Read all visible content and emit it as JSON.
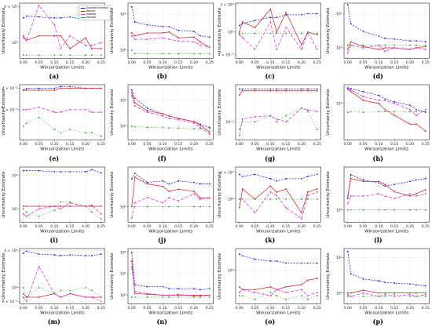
{
  "chart_data": [
    {
      "label": "(a)",
      "type": "line",
      "xlabel": "Winsorization Limits",
      "ylabel": "Uncertainty Estimate",
      "yticks": [
        {
          "v": 1,
          "t": "10⁰"
        },
        {
          "v": 4,
          "t": "4 × 10⁰"
        }
      ],
      "ylim": [
        0.55,
        4.6
      ],
      "legend": [
        "Constant Position",
        "Wiener",
        "Hawkes",
        "Hansen"
      ],
      "series": [
        {
          "values": [
            2.6,
            2.8,
            2.7,
            2.6,
            2.6,
            2.7,
            2.4,
            2.7,
            2.8
          ]
        },
        {
          "values": [
            1.3,
            1.1,
            1.3,
            1.3,
            1.3,
            0.8,
            1.2,
            0.8,
            0.8
          ]
        },
        {
          "values": [
            1.2,
            1.1,
            4.2,
            2.0,
            0.8,
            1.3,
            0.9,
            0.9,
            1.0
          ]
        },
        {
          "values": [
            0.62,
            0.62,
            0.62,
            0.62,
            0.62,
            0.62,
            0.62,
            0.62,
            0.62
          ]
        }
      ]
    },
    {
      "label": "(b)",
      "type": "line",
      "xlabel": "Winsorization Limits",
      "ylabel": "Uncertainty Estimate",
      "yticks": [
        {
          "v": 1,
          "t": "10⁰"
        },
        {
          "v": 10,
          "t": "10¹"
        }
      ],
      "ylim": [
        0.6,
        20
      ],
      "series": [
        {
          "values": [
            16,
            6,
            5,
            4.5,
            4.5,
            3.5,
            3.3,
            2.5,
            2.3
          ]
        },
        {
          "values": [
            3,
            2.5,
            3,
            3,
            3.2,
            2.2,
            2.3,
            1.7,
            1.2
          ]
        },
        {
          "values": [
            2.5,
            2,
            2,
            2.2,
            2,
            1.8,
            1.7,
            1.4,
            1.2
          ]
        },
        {
          "values": [
            1,
            0.8,
            0.8,
            0.8,
            0.8,
            0.8,
            0.8,
            0.8,
            0.8
          ]
        }
      ]
    },
    {
      "label": "(c)",
      "type": "line",
      "xlabel": "Winsorization Limits",
      "ylabel": "Uncertainty Estimate",
      "yticks": [
        {
          "v": 0.4,
          "t": "4 × 10⁻¹"
        },
        {
          "v": 1,
          "t": "10⁰"
        },
        {
          "v": 3,
          "t": "3 × 10⁰"
        }
      ],
      "ylim": [
        0.35,
        3.2
      ],
      "series": [
        {
          "values": [
            1.3,
            1.4,
            1.6,
            1.8,
            1.8,
            2.0,
            2.0,
            2.1,
            2.1
          ]
        },
        {
          "values": [
            1.0,
            1.5,
            1.2,
            2.5,
            1.0,
            2.2,
            0.6,
            1.0,
            0.9
          ]
        },
        {
          "values": [
            0.9,
            0.8,
            0.5,
            1.5,
            0.5,
            1.2,
            0.5,
            1.0,
            0.5
          ]
        },
        {
          "values": [
            0.95,
            0.95,
            0.95,
            0.95,
            0.95,
            0.95,
            0.95,
            0.95,
            0.95
          ]
        }
      ]
    },
    {
      "label": "(d)",
      "type": "line",
      "xlabel": "Winsorization Limits",
      "ylabel": "Uncertainty Estimate",
      "yticks": [
        {
          "v": 1,
          "t": "10⁰"
        },
        {
          "v": 10,
          "t": "10¹"
        }
      ],
      "ylim": [
        0.5,
        20
      ],
      "series": [
        {
          "values": [
            18,
            5,
            3,
            2.2,
            1.9,
            1.8,
            1.6,
            1.6,
            1.5
          ]
        },
        {
          "values": [
            0.9,
            1.5,
            1.1,
            0.9,
            1.0,
            1.0,
            0.9,
            1.0,
            1.1
          ]
        },
        {
          "values": [
            0.7,
            1.2,
            1.0,
            1.2,
            0.8,
            1.0,
            0.9,
            1.0,
            0.9
          ]
        },
        {
          "values": [
            1.2,
            1.2,
            1.2,
            1.2,
            1.2,
            1.2,
            1.2,
            1.2,
            1.2
          ]
        }
      ]
    },
    {
      "label": "(e)",
      "type": "line",
      "xlabel": "Winsorization Limits",
      "ylabel": "Uncertainty Estimate",
      "yticks": [
        {
          "v": 0.4,
          "t": "4 × 10⁻¹"
        },
        {
          "v": 0.3,
          "t": "3 × 10⁻¹"
        }
      ],
      "ylim": [
        0.2,
        0.42
      ],
      "series": [
        {
          "values": [
            0.39,
            0.4,
            0.4,
            0.4,
            0.41,
            0.41,
            0.4,
            0.4,
            0.4
          ]
        },
        {
          "values": [
            0.39,
            0.39,
            0.39,
            0.39,
            0.4,
            0.4,
            0.4,
            0.4,
            0.4
          ]
        },
        {
          "values": [
            0.3,
            0.3,
            0.31,
            0.29,
            0.29,
            0.3,
            0.3,
            0.29,
            0.29
          ]
        },
        {
          "values": [
            0.24,
            0.25,
            0.27,
            0.23,
            0.22,
            0.23,
            0.22,
            0.22,
            0.21
          ]
        }
      ]
    },
    {
      "label": "(f)",
      "type": "line",
      "xlabel": "Winsorization Limits",
      "ylabel": "Uncertainty Estimate",
      "yticks": [
        {
          "v": 1,
          "t": "10⁰"
        },
        {
          "v": 10,
          "t": "10¹"
        }
      ],
      "ylim": [
        0.3,
        40
      ],
      "series": [
        {
          "values": [
            25,
            12,
            5,
            3,
            2.5,
            2,
            1.5,
            1.2,
            0.9
          ]
        },
        {
          "values": [
            20,
            8,
            4,
            3,
            2.5,
            2,
            1.5,
            1.1,
            0.6
          ]
        },
        {
          "values": [
            15,
            6,
            3.5,
            2.5,
            2,
            1.8,
            1.3,
            0.9,
            0.5
          ]
        },
        {
          "values": [
            1,
            0.95,
            0.9,
            0.9,
            0.85,
            0.85,
            0.8,
            0.8,
            0.8
          ]
        }
      ]
    },
    {
      "label": "(g)",
      "type": "line",
      "xlabel": "Winsorization Limits",
      "ylabel": "Uncertainty Estimate",
      "yticks": [
        {
          "v": 0.1,
          "t": "10⁻¹"
        }
      ],
      "ylim": [
        0.03,
        1.2
      ],
      "series": [
        {
          "values": [
            0.9,
            0.9,
            0.9,
            0.9,
            0.9,
            0.9,
            0.9,
            0.9,
            0.9
          ]
        },
        {
          "values": [
            0.6,
            0.8,
            0.8,
            0.8,
            0.8,
            0.8,
            0.8,
            0.8,
            0.8
          ]
        },
        {
          "values": [
            0.04,
            0.12,
            0.14,
            0.15,
            0.12,
            0.1,
            0.25,
            0.22,
            0.2
          ]
        },
        {
          "values": [
            0.06,
            0.1,
            0.1,
            0.15,
            0.1,
            0.15,
            0.25,
            0.2,
            0.06
          ]
        }
      ]
    },
    {
      "label": "(h)",
      "type": "line",
      "xlabel": "Winsorization Limits",
      "ylabel": "Uncertainty Estimate",
      "yticks": [
        {
          "v": 1,
          "t": "10⁰"
        }
      ],
      "ylim": [
        0.12,
        3
      ],
      "series": [
        {
          "values": [
            2.5,
            2.4,
            2.0,
            1.6,
            1.3,
            1.1,
            0.9,
            0.7,
            0.6
          ]
        },
        {
          "values": [
            2.3,
            2.0,
            1.2,
            1.0,
            0.7,
            0.5,
            0.3,
            0.3,
            0.2
          ]
        },
        {
          "values": [
            2.4,
            2.2,
            1.5,
            1.2,
            1.2,
            1.0,
            0.7,
            0.5,
            0.7
          ]
        },
        {
          "values": [
            0.6,
            0.62,
            0.6,
            0.62,
            0.62,
            0.62,
            0.62,
            0.62,
            0.62
          ]
        }
      ]
    },
    {
      "label": "(i)",
      "type": "line",
      "xlabel": "Winsorization Limits",
      "ylabel": "Uncertainty Estimate",
      "yticks": [
        {
          "v": 1,
          "t": "10⁰"
        },
        {
          "v": 10,
          "t": "10¹"
        }
      ],
      "ylim": [
        0.4,
        18
      ],
      "series": [
        {
          "values": [
            14,
            14,
            14,
            13,
            13,
            13,
            13,
            15,
            12
          ]
        },
        {
          "values": [
            1.2,
            1.2,
            1.2,
            1.2,
            1.2,
            1.2,
            1.2,
            1.2,
            1.2
          ]
        },
        {
          "values": [
            0.7,
            0.6,
            1.0,
            1.2,
            1.0,
            1.5,
            1.2,
            1.3,
            0.7
          ]
        },
        {
          "values": [
            1.0,
            0.8,
            0.6,
            0.9,
            1.6,
            1.6,
            1.2,
            0.8,
            0.5
          ]
        }
      ]
    },
    {
      "label": "(j)",
      "type": "line",
      "xlabel": "Winsorization Limits",
      "ylabel": "Uncertainty Estimate",
      "yticks": [
        {
          "v": 1,
          "t": "10⁰"
        }
      ],
      "ylim": [
        0.5,
        6
      ],
      "series": [
        {
          "values": [
            3.5,
            4.5,
            3.0,
            3.2,
            2.8,
            3.2,
            3.0,
            2.8,
            2.8
          ]
        },
        {
          "values": [
            1.0,
            3.8,
            2.8,
            2.5,
            2.0,
            2.2,
            2.0,
            1.5,
            1.5
          ]
        },
        {
          "values": [
            0.6,
            1.2,
            1.5,
            1.2,
            1.5,
            1.3,
            1.8,
            1.4,
            1.5
          ]
        },
        {
          "values": [
            1.0,
            1.0,
            1.0,
            1.0,
            1.0,
            1.0,
            1.0,
            1.0,
            1.0
          ]
        }
      ]
    },
    {
      "label": "(k)",
      "type": "line",
      "xlabel": "Winsorization Limits",
      "ylabel": "Uncertainty Estimate",
      "yticks": [
        {
          "v": 1,
          "t": "10⁰"
        },
        {
          "v": 2,
          "t": "2 × 10⁰"
        }
      ],
      "ylim": [
        0.55,
        2.3
      ],
      "series": [
        {
          "values": [
            1.9,
            1.8,
            1.9,
            1.7,
            1.6,
            1.7,
            1.7,
            1.8,
            1.9
          ]
        },
        {
          "values": [
            0.8,
            1.3,
            1.0,
            1.4,
            1.2,
            1.3,
            0.7,
            1.2,
            1.3
          ]
        },
        {
          "values": [
            1.0,
            1.0,
            0.7,
            1.2,
            1.1,
            0.8,
            0.6,
            1.1,
            1.2
          ]
        },
        {
          "values": [
            1.0,
            1.0,
            1.0,
            1.0,
            1.0,
            1.0,
            1.0,
            1.0,
            1.0
          ]
        }
      ]
    },
    {
      "label": "(l)",
      "type": "line",
      "xlabel": "Winsorization Limits",
      "ylabel": "Uncertainty Estimate",
      "yticks": [
        {
          "v": 1,
          "t": "10⁰"
        }
      ],
      "ylim": [
        0.7,
        3.5
      ],
      "series": [
        {
          "values": [
            1.4,
            2.8,
            2.4,
            2.2,
            2.0,
            2.1,
            2.3,
            2.4,
            2.5
          ]
        },
        {
          "values": [
            1.5,
            2.5,
            2.3,
            2.3,
            2.1,
            1.7,
            1.5,
            1.6,
            1.8
          ]
        },
        {
          "values": [
            1.2,
            1.5,
            1.5,
            1.6,
            1.5,
            1.4,
            1.6,
            1.5,
            1.6
          ]
        },
        {
          "values": [
            1.0,
            1.0,
            1.0,
            1.0,
            1.0,
            1.0,
            1.0,
            1.0,
            1.0
          ]
        }
      ]
    },
    {
      "label": "(m)",
      "type": "line",
      "xlabel": "Winsorization Limits",
      "ylabel": "Uncertainty Estimate",
      "yticks": [
        {
          "v": 0.6,
          "t": "6 × 10⁻¹"
        },
        {
          "v": 1,
          "t": "10⁰"
        },
        {
          "v": 4,
          "t": "4 × 10⁰"
        }
      ],
      "ylim": [
        0.55,
        4.3
      ],
      "series": [
        {
          "values": [
            3.6,
            3.9,
            3.5,
            3.4,
            3.3,
            3.4,
            3.3,
            3.3,
            3.5
          ]
        },
        {
          "values": [
            0.8,
            0.7,
            0.7,
            0.8,
            0.7,
            0.8,
            0.7,
            0.7,
            0.7
          ]
        },
        {
          "values": [
            0.7,
            0.6,
            2.2,
            0.8,
            0.7,
            0.8,
            0.7,
            0.7,
            0.6
          ]
        },
        {
          "values": [
            1.0,
            0.7,
            1.0,
            0.8,
            0.9,
            0.9,
            1.0,
            0.9,
            0.7
          ]
        }
      ]
    },
    {
      "label": "(n)",
      "type": "line",
      "xlabel": "Winsorization Limits",
      "ylabel": "Uncertainty Estimate",
      "yticks": [
        {
          "v": 1,
          "t": "10⁰"
        },
        {
          "v": 10,
          "t": "10¹"
        },
        {
          "v": 100,
          "t": "10²"
        }
      ],
      "ylim": [
        0.4,
        150
      ],
      "series": [
        {
          "values": [
            100,
            3,
            2.5,
            2.5,
            2,
            2,
            2,
            1.8,
            2
          ]
        },
        {
          "values": [
            40,
            1.2,
            1.1,
            1,
            1,
            1,
            1,
            1,
            1
          ]
        },
        {
          "values": [
            20,
            1.5,
            1.2,
            1,
            1,
            1.1,
            0.9,
            0.9,
            1
          ]
        },
        {
          "values": [
            0.8,
            0.8,
            0.8,
            0.8,
            0.8,
            0.8,
            0.8,
            0.8,
            0.8
          ]
        }
      ]
    },
    {
      "label": "(o)",
      "type": "line",
      "xlabel": "Winsorization Limits",
      "ylabel": "Uncertainty Estimate",
      "yticks": [
        {
          "v": 1,
          "t": "10⁰"
        }
      ],
      "ylim": [
        0.3,
        2.2
      ],
      "series": [
        {
          "values": [
            1.8,
            1.7,
            1.5,
            1.4,
            1.4,
            1.3,
            1.3,
            1.3,
            1.3
          ]
        },
        {
          "values": [
            0.55,
            0.5,
            0.5,
            0.55,
            0.5,
            0.55,
            0.6,
            0.7,
            0.75
          ]
        },
        {
          "values": [
            0.45,
            0.5,
            0.45,
            0.4,
            0.5,
            0.45,
            0.5,
            0.4,
            0.45
          ]
        },
        {
          "values": [
            0.4,
            0.4,
            0.35,
            0.45,
            0.4,
            0.35,
            0.4,
            0.35,
            0.4
          ]
        }
      ]
    },
    {
      "label": "(p)",
      "type": "line",
      "xlabel": "Winsorization Limits",
      "ylabel": "Uncertainty Estimate",
      "yticks": [
        {
          "v": 1,
          "t": "10⁰"
        },
        {
          "v": 10,
          "t": "10¹"
        }
      ],
      "ylim": [
        0.5,
        18
      ],
      "series": [
        {
          "values": [
            15,
            3.5,
            2.5,
            2.2,
            2.0,
            1.9,
            1.8,
            1.7,
            1.6
          ]
        },
        {
          "values": [
            1.0,
            1.0,
            1.2,
            1.0,
            1.0,
            1.0,
            1.0,
            1.0,
            1.0
          ]
        },
        {
          "values": [
            0.9,
            0.8,
            1.0,
            0.8,
            0.9,
            0.8,
            0.9,
            0.8,
            0.9
          ]
        },
        {
          "values": [
            0.8,
            0.8,
            0.8,
            0.8,
            0.8,
            0.9,
            0.8,
            0.8,
            0.8
          ]
        }
      ]
    }
  ],
  "shared": {
    "x": [
      0.0,
      0.01,
      0.05,
      0.1,
      0.12,
      0.15,
      0.2,
      0.22,
      0.25
    ],
    "xticks": [
      "0.00",
      "0.05",
      "0.10",
      "0.15",
      "0.20",
      "0.25"
    ],
    "xtick_values": [
      0.0,
      0.05,
      0.1,
      0.15,
      0.2,
      0.25
    ],
    "series_style": [
      {
        "color": "#1f1fd6",
        "dash": "2,1.5"
      },
      {
        "color": "#d62728",
        "dash": ""
      },
      {
        "color": "#d633d6",
        "dash": "4,2"
      },
      {
        "color": "#2ca02c",
        "dash": "1,2.5"
      }
    ]
  }
}
